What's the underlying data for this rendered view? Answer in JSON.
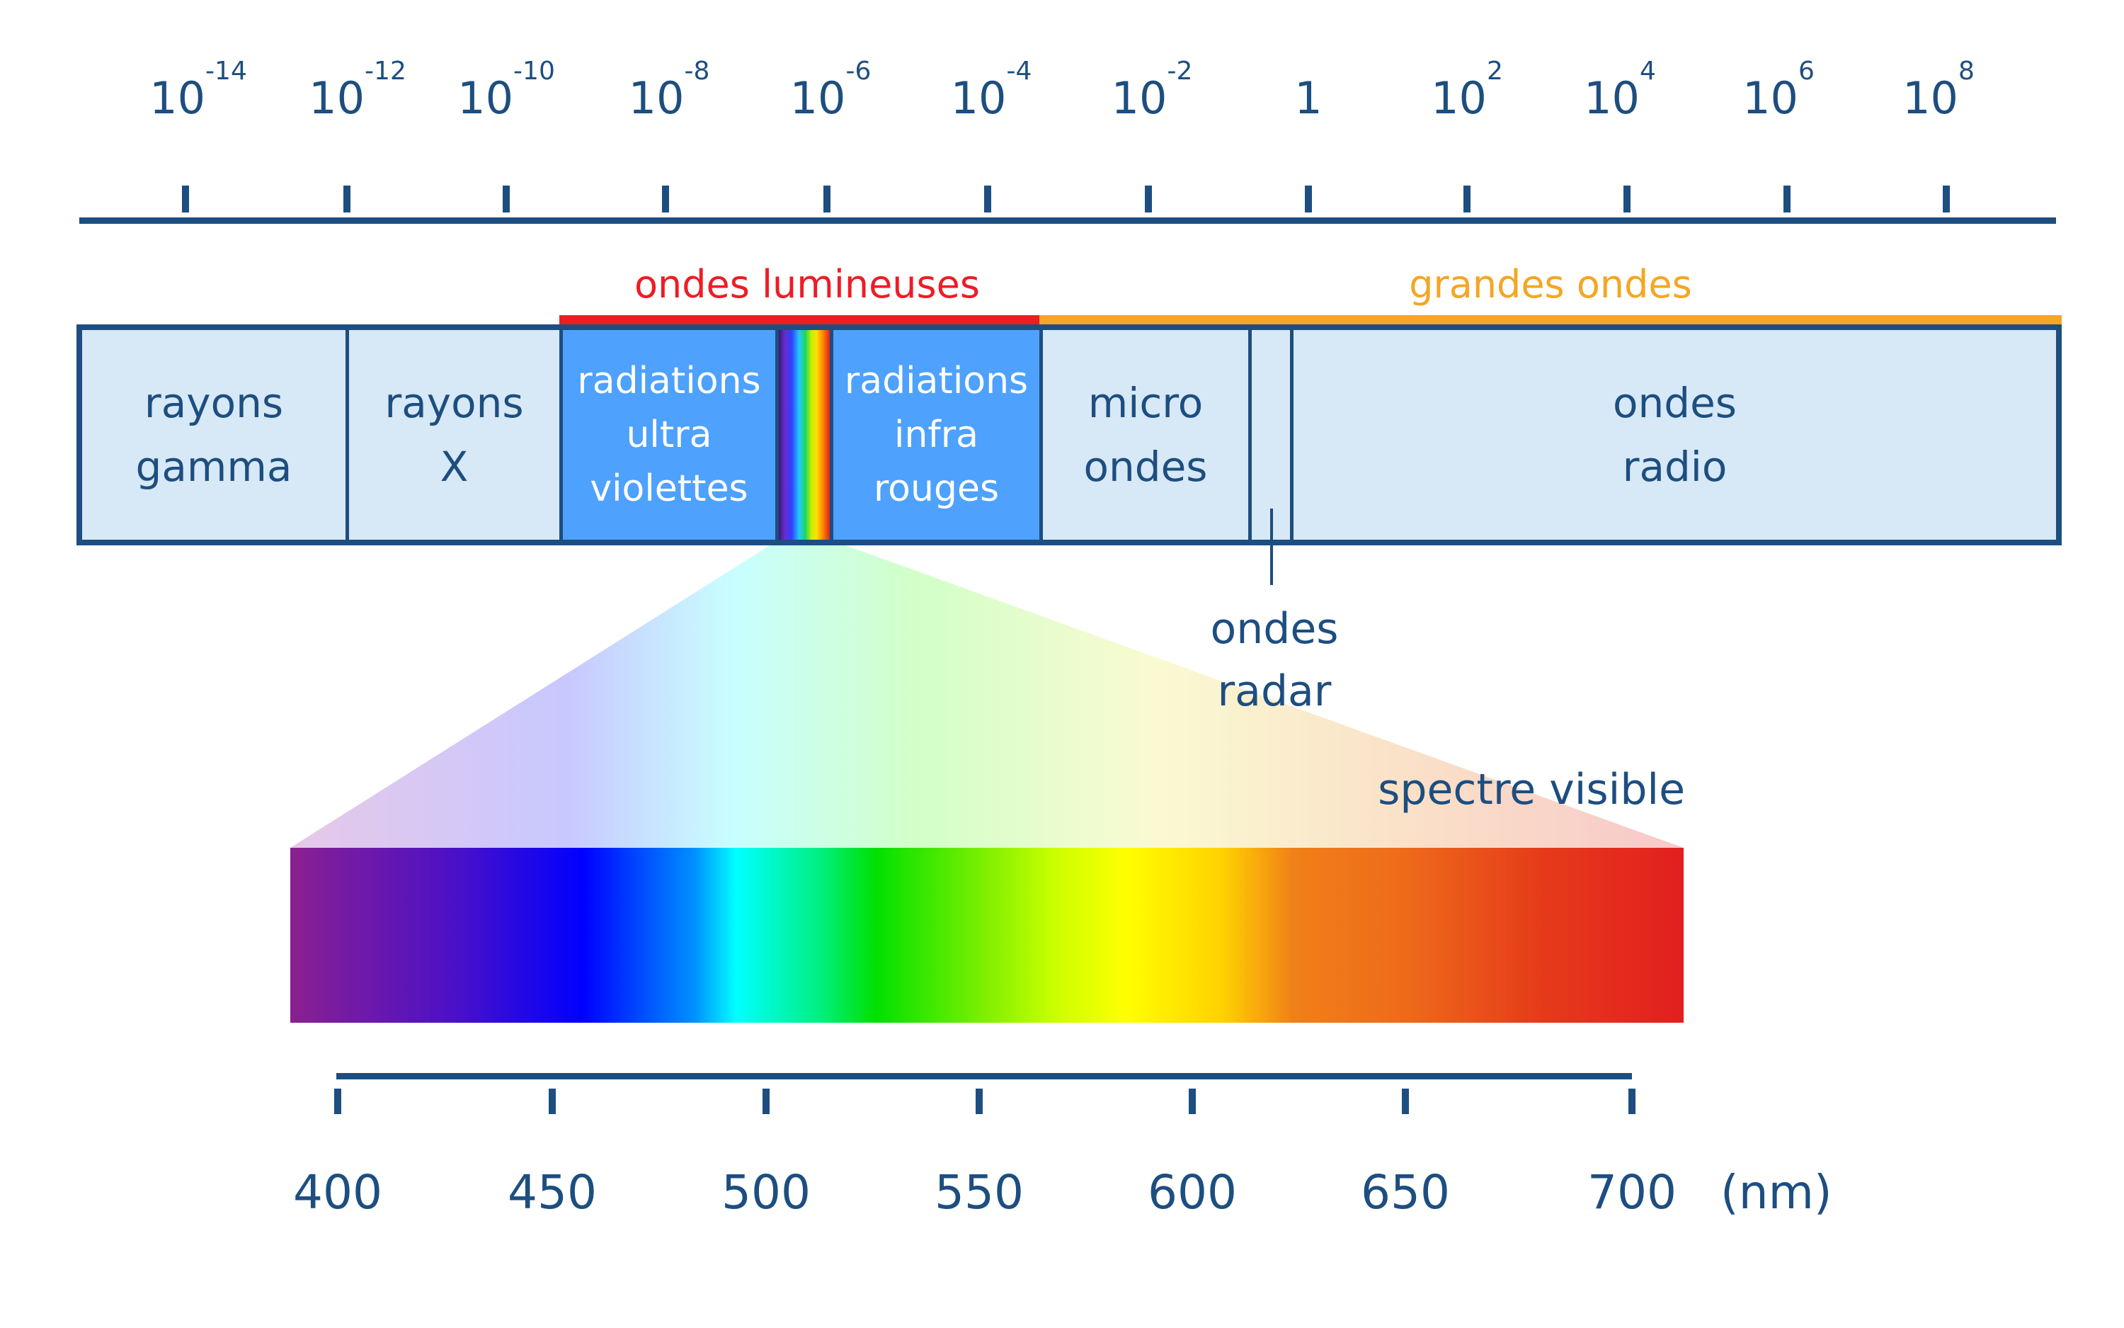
{
  "top_scale": {
    "labels": [
      {
        "base": "10",
        "exp": "-14"
      },
      {
        "base": "10",
        "exp": "-12"
      },
      {
        "base": "10",
        "exp": "-10"
      },
      {
        "base": "10",
        "exp": "-8"
      },
      {
        "base": "10",
        "exp": "-6"
      },
      {
        "base": "10",
        "exp": "-4"
      },
      {
        "base": "10",
        "exp": "-2"
      },
      {
        "base": "1",
        "exp": ""
      },
      {
        "base": "10",
        "exp": "2"
      },
      {
        "base": "10",
        "exp": "4"
      },
      {
        "base": "10",
        "exp": "6"
      },
      {
        "base": "10",
        "exp": "8"
      }
    ]
  },
  "ranges": {
    "light_label": "ondes lumineuses",
    "light_color": "#ee1c25",
    "long_label": "grandes ondes",
    "long_color": "#f5a623"
  },
  "band": {
    "gamma": "rayons\ngamma",
    "xray": "rayons\nX",
    "uv": "radiations\nultra\nviolettes",
    "ir": "radiations\ninfra\nrouges",
    "micro": "micro\nondes",
    "radio": "ondes\nradio"
  },
  "radar_label": "ondes\nradar",
  "visible_label": "spectre visible",
  "bottom_scale": {
    "ticks": [
      "400",
      "450",
      "500",
      "550",
      "600",
      "650",
      "700"
    ],
    "unit": "(nm)"
  },
  "colors": {
    "text": "#1d4e80",
    "band_fill": "#d7e8f6",
    "light_fill": "#4ea1fd"
  }
}
